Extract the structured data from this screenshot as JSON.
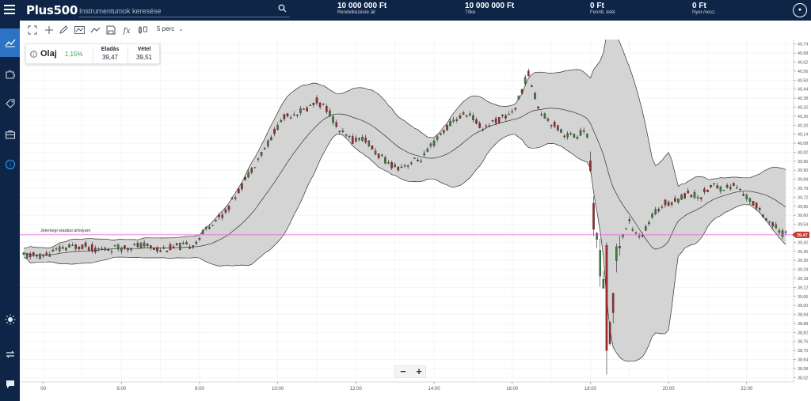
{
  "header": {
    "logo": "Plus500",
    "search_placeholder": "Instrumentumok keresése",
    "stats": [
      {
        "value": "10 000 000 Ft",
        "label": "Rendelkezésre áll"
      },
      {
        "value": "10 000 000 Ft",
        "label": "Tőke"
      },
      {
        "value": "0 Ft",
        "label": "Fenntt. letét"
      },
      {
        "value": "0 Ft",
        "label": "Nyer./vesz."
      }
    ]
  },
  "sidebar": {
    "items": [
      {
        "icon": "chart-line-icon",
        "active": true
      },
      {
        "icon": "puzzle-icon",
        "active": false
      },
      {
        "icon": "tag-icon",
        "active": false
      },
      {
        "icon": "briefcase-icon",
        "active": false
      },
      {
        "icon": "info-icon",
        "active": false
      }
    ],
    "bottom_items": [
      {
        "icon": "sun-icon"
      },
      {
        "icon": "swap-arrows-icon"
      },
      {
        "icon": "chat-icon"
      }
    ]
  },
  "toolbar": {
    "period": "5 perc",
    "tools": [
      "expand-icon",
      "crosshair-icon",
      "pencil-icon",
      "wave-icon",
      "trend-icon",
      "save-icon",
      "fx-icon",
      "candlestick-toggle-icon"
    ]
  },
  "instrument": {
    "name": "Olaj",
    "change": "1,15%",
    "sell_label": "Eladás",
    "sell_value": "39,47",
    "buy_label": "Vétel",
    "buy_value": "39,51"
  },
  "colors": {
    "header_bg": "#0f2547",
    "sidebar_active": "#2a73c5",
    "candle_up": "#3e7a3a",
    "candle_down": "#9b2a2a",
    "band_fill": "#d4d4d4",
    "current_price_line": "#e85bd8",
    "price_marker": "#c7352d",
    "change_positive": "#3aa34a"
  },
  "chart_data": {
    "type": "candlestick",
    "indicator": "bollinger-bands",
    "current_price_label": "Jelenlegi eladási árfolyam",
    "current_price": 39.47,
    "current_price_marker": "39,47",
    "x_ticks": [
      "00",
      "6:00",
      "8:00",
      "10:00",
      "12:00",
      "14:00",
      "16:00",
      "18:00",
      "20:00",
      "22:00"
    ],
    "y_ticks": [
      "40,74",
      "40,68",
      "40,62",
      "40,56",
      "40,50",
      "40,44",
      "40,38",
      "40,32",
      "40,26",
      "40,20",
      "40,14",
      "40,08",
      "40,02",
      "39,96",
      "39,90",
      "39,84",
      "39,78",
      "39,72",
      "39,66",
      "39,60",
      "39,54",
      "39,48",
      "39,42",
      "39,36",
      "39,30",
      "39,24",
      "39,18",
      "39,12",
      "39,06",
      "39,00",
      "38,94",
      "38,88",
      "38,82",
      "38,76",
      "38,70",
      "38,64",
      "38,58",
      "38,52"
    ],
    "ylim": [
      38.49,
      40.77
    ],
    "close_path": [
      [
        4.0,
        39.33
      ],
      [
        4.5,
        39.38
      ],
      [
        5.0,
        39.4
      ],
      [
        5.4,
        39.37
      ],
      [
        5.8,
        39.38
      ],
      [
        6.2,
        39.39
      ],
      [
        6.6,
        39.4
      ],
      [
        7.0,
        39.37
      ],
      [
        7.4,
        39.39
      ],
      [
        7.8,
        39.4
      ],
      [
        8.0,
        39.45
      ],
      [
        8.3,
        39.55
      ],
      [
        8.6,
        39.6
      ],
      [
        8.9,
        39.72
      ],
      [
        9.2,
        39.85
      ],
      [
        9.5,
        39.98
      ],
      [
        9.8,
        40.1
      ],
      [
        10.1,
        40.24
      ],
      [
        10.4,
        40.28
      ],
      [
        10.7,
        40.3
      ],
      [
        11.0,
        40.36
      ],
      [
        11.3,
        40.3
      ],
      [
        11.6,
        40.15
      ],
      [
        11.9,
        40.1
      ],
      [
        12.2,
        40.12
      ],
      [
        12.5,
        40.02
      ],
      [
        12.8,
        39.95
      ],
      [
        13.1,
        39.92
      ],
      [
        13.4,
        39.95
      ],
      [
        13.7,
        39.98
      ],
      [
        14.0,
        40.08
      ],
      [
        14.3,
        40.18
      ],
      [
        14.6,
        40.25
      ],
      [
        14.9,
        40.28
      ],
      [
        15.2,
        40.18
      ],
      [
        15.5,
        40.22
      ],
      [
        15.8,
        40.25
      ],
      [
        16.1,
        40.32
      ],
      [
        16.4,
        40.55
      ],
      [
        16.7,
        40.3
      ],
      [
        17.0,
        40.22
      ],
      [
        17.3,
        40.15
      ],
      [
        17.6,
        40.12
      ],
      [
        17.9,
        40.18
      ],
      [
        18.1,
        39.55
      ],
      [
        18.3,
        39.2
      ],
      [
        18.5,
        38.8
      ],
      [
        18.7,
        39.4
      ],
      [
        19.0,
        39.55
      ],
      [
        19.3,
        39.45
      ],
      [
        19.6,
        39.6
      ],
      [
        19.9,
        39.68
      ],
      [
        20.2,
        39.7
      ],
      [
        20.5,
        39.75
      ],
      [
        20.8,
        39.72
      ],
      [
        21.1,
        39.8
      ],
      [
        21.4,
        39.78
      ],
      [
        21.7,
        39.8
      ],
      [
        22.0,
        39.72
      ],
      [
        22.3,
        39.65
      ],
      [
        22.6,
        39.55
      ],
      [
        22.9,
        39.48
      ]
    ]
  },
  "zoom": {
    "minus": "−",
    "plus": "+"
  }
}
